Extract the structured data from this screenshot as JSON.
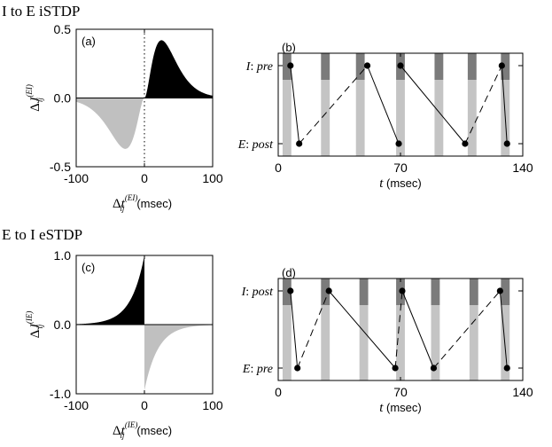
{
  "sections": [
    "I to E iSTDP",
    "E to I eSTDP"
  ],
  "chart_data": [
    {
      "type": "area",
      "panel_label": "(a)",
      "xlabel": {
        "sym": "Δt",
        "sub": "ij",
        "sup": "(EI)",
        "unit": "(msec)"
      },
      "ylabel": {
        "sym": "ΔJ",
        "sub": "ij",
        "sup": "(EI)"
      },
      "xlim": [
        -100,
        100
      ],
      "ylim": [
        -0.5,
        0.5
      ],
      "xticks": [
        -100,
        0,
        100
      ],
      "yticks": [
        {
          "v": 0.5,
          "label": "0.5"
        },
        {
          "v": 0.0,
          "label": "0.0"
        },
        {
          "v": -0.5,
          "label": "-0.5"
        }
      ],
      "series": [
        {
          "kind": "positive-lobe",
          "peak_x": 25,
          "peak_y": 0.42,
          "color": "#000000"
        },
        {
          "kind": "negative-lobe",
          "peak_x": -28,
          "peak_y": -0.37,
          "color": "#c0c0c0"
        }
      ],
      "zero_line": "dotted"
    },
    {
      "type": "area",
      "panel_label": "(c)",
      "xlabel": {
        "sym": "Δt",
        "sub": "ij",
        "sup": "(IE)",
        "unit": "(msec)"
      },
      "ylabel": {
        "sym": "ΔJ",
        "sub": "ij",
        "sup": "(IE)"
      },
      "xlim": [
        -100,
        100
      ],
      "ylim": [
        -1.0,
        1.0
      ],
      "xticks": [
        -100,
        0,
        100
      ],
      "yticks": [
        {
          "v": 1.0,
          "label": "1.0"
        },
        {
          "v": 0.0,
          "label": "0.0"
        },
        {
          "v": -1.0,
          "label": "-1.0"
        }
      ],
      "series": [
        {
          "kind": "exp-left",
          "amplitude": 1.0,
          "tau": 20,
          "color": "#000000"
        },
        {
          "kind": "exp-right",
          "amplitude": -0.95,
          "tau": 20,
          "color": "#c0c0c0"
        }
      ]
    },
    {
      "type": "scatter",
      "panel_label": "(b)",
      "xlim": [
        0,
        140
      ],
      "xticks": [
        0,
        70,
        140
      ],
      "xlabel": {
        "sym": "t",
        "unit": "(msec)"
      },
      "rows": [
        {
          "label_a": "I",
          "label_b": "pre"
        },
        {
          "label_a": "E",
          "label_b": "post"
        }
      ],
      "bands": [
        5,
        27,
        47,
        70,
        92,
        111,
        130
      ],
      "band_width": 5,
      "events": [
        [
          7,
          0
        ],
        [
          12,
          1
        ],
        [
          51,
          0
        ],
        [
          69,
          1
        ],
        [
          70,
          0
        ],
        [
          107,
          1
        ],
        [
          128,
          0
        ],
        [
          131,
          1
        ]
      ],
      "connections": [
        {
          "from": 0,
          "to": 1,
          "style": "solid"
        },
        {
          "from": 1,
          "to": 2,
          "style": "dashed"
        },
        {
          "from": 2,
          "to": 3,
          "style": "solid"
        },
        {
          "from": 4,
          "to": 5,
          "style": "solid"
        },
        {
          "from": 5,
          "to": 6,
          "style": "dashed"
        },
        {
          "from": 6,
          "to": 7,
          "style": "solid"
        }
      ]
    },
    {
      "type": "scatter",
      "panel_label": "(d)",
      "xlim": [
        0,
        140
      ],
      "xticks": [
        0,
        70,
        140
      ],
      "xlabel": {
        "sym": "t",
        "unit": "(msec)"
      },
      "rows": [
        {
          "label_a": "I",
          "label_b": "post"
        },
        {
          "label_a": "E",
          "label_b": "pre"
        }
      ],
      "bands": [
        5,
        27,
        49,
        70,
        90,
        112,
        130
      ],
      "band_width": 5,
      "events": [
        [
          7,
          0
        ],
        [
          11,
          1
        ],
        [
          29,
          0
        ],
        [
          67,
          1
        ],
        [
          71,
          0
        ],
        [
          89,
          1
        ],
        [
          127,
          0
        ],
        [
          131,
          1
        ]
      ],
      "connections": [
        {
          "from": 0,
          "to": 1,
          "style": "solid"
        },
        {
          "from": 1,
          "to": 2,
          "style": "dashed"
        },
        {
          "from": 2,
          "to": 3,
          "style": "solid"
        },
        {
          "from": 3,
          "to": 4,
          "style": "dashed"
        },
        {
          "from": 4,
          "to": 5,
          "style": "solid"
        },
        {
          "from": 5,
          "to": 6,
          "style": "dashed"
        },
        {
          "from": 6,
          "to": 7,
          "style": "solid"
        }
      ]
    }
  ]
}
